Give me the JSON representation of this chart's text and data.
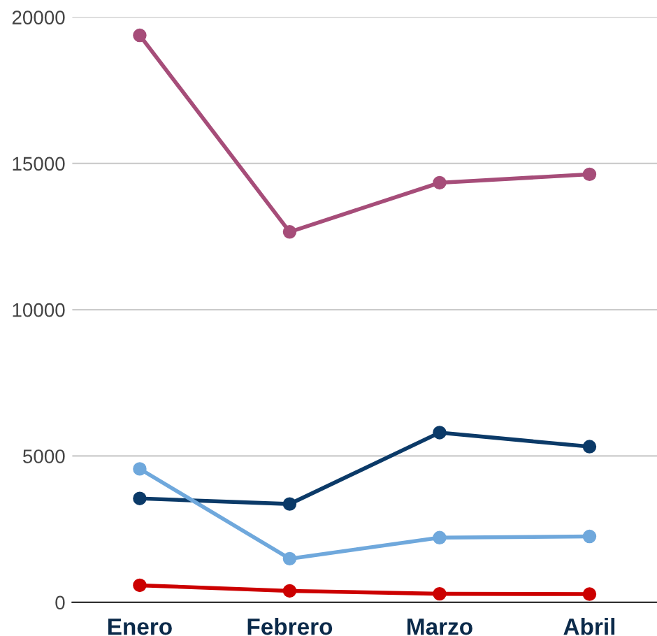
{
  "chart_data": {
    "type": "line",
    "categories": [
      "Enero",
      "Febrero",
      "Marzo",
      "Abril"
    ],
    "series": [
      {
        "color": "#a64d79",
        "values": [
          19380,
          12660,
          14340,
          14630
        ]
      },
      {
        "color": "#0b3a68",
        "values": [
          3550,
          3360,
          5800,
          5320
        ]
      },
      {
        "color": "#6fa8dc",
        "values": [
          4560,
          1490,
          2210,
          2250
        ]
      },
      {
        "color": "#cc0000",
        "values": [
          580,
          390,
          290,
          280
        ]
      }
    ],
    "ylim": [
      0,
      20000
    ],
    "yticks": [
      0,
      5000,
      10000,
      15000,
      20000
    ],
    "grid": "y",
    "marker": "circle",
    "line_style": "solid"
  }
}
